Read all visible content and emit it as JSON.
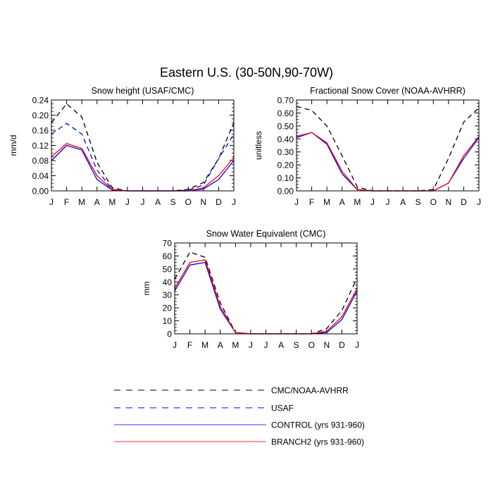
{
  "figure_title": "Eastern U.S. (30-50N,90-70W)",
  "months": [
    "J",
    "F",
    "M",
    "A",
    "M",
    "J",
    "J",
    "A",
    "S",
    "O",
    "N",
    "D",
    "J"
  ],
  "legend": [
    {
      "label": "CMC/NOAA-AVHRR",
      "color": "#000000",
      "dashed": true
    },
    {
      "label": "USAF",
      "color": "#0000ff",
      "dashed": true
    },
    {
      "label": "CONTROL (yrs 931-960)",
      "color": "#0000ff",
      "dashed": false
    },
    {
      "label": "BRANCH2 (yrs 931-960)",
      "color": "#ff0000",
      "dashed": false
    }
  ],
  "chart_data": [
    {
      "type": "line",
      "title": "Snow height (USAF/CMC)",
      "ylabel": "mm/d",
      "xlabel": "",
      "ylim": [
        0,
        0.24
      ],
      "yticks": [
        "0.00",
        "0.04",
        "0.08",
        "0.12",
        "0.16",
        "0.20",
        "0.24"
      ],
      "x": [
        "J",
        "F",
        "M",
        "A",
        "M",
        "J",
        "J",
        "A",
        "S",
        "O",
        "N",
        "D",
        "J"
      ],
      "series": [
        {
          "name": "CMC/NOAA-AVHRR",
          "color": "#000000",
          "dashed": true,
          "values": [
            0.18,
            0.23,
            0.195,
            0.075,
            0.008,
            0.0,
            0.0,
            0.0,
            0.0,
            0.004,
            0.022,
            0.085,
            0.18
          ]
        },
        {
          "name": "USAF",
          "color": "#0000ff",
          "dashed": true,
          "values": [
            0.15,
            0.178,
            0.15,
            0.055,
            0.004,
            0.0,
            0.0,
            0.0,
            0.0,
            0.002,
            0.015,
            0.085,
            0.15
          ]
        },
        {
          "name": "CONTROL (yrs 931-960)",
          "color": "#0000ff",
          "dashed": false,
          "values": [
            0.08,
            0.12,
            0.108,
            0.03,
            0.002,
            0.0,
            0.0,
            0.0,
            0.0,
            0.0,
            0.005,
            0.03,
            0.08
          ]
        },
        {
          "name": "BRANCH2 (yrs 931-960)",
          "color": "#ff0000",
          "dashed": false,
          "values": [
            0.09,
            0.125,
            0.112,
            0.04,
            0.003,
            0.0,
            0.0,
            0.0,
            0.0,
            0.0,
            0.008,
            0.04,
            0.088
          ]
        }
      ]
    },
    {
      "type": "line",
      "title": "Fractional Snow Cover (NOAA-AVHRR)",
      "ylabel": "unitless",
      "xlabel": "",
      "ylim": [
        0,
        0.7
      ],
      "yticks": [
        "0.00",
        "0.10",
        "0.20",
        "0.30",
        "0.40",
        "0.50",
        "0.60",
        "0.70"
      ],
      "x": [
        "J",
        "F",
        "M",
        "A",
        "M",
        "J",
        "J",
        "A",
        "S",
        "O",
        "N",
        "D",
        "J"
      ],
      "series": [
        {
          "name": "CMC/NOAA-AVHRR",
          "color": "#000000",
          "dashed": true,
          "values": [
            0.65,
            0.62,
            0.5,
            0.27,
            0.03,
            0.0,
            0.0,
            0.0,
            0.0,
            0.01,
            0.25,
            0.53,
            0.64
          ]
        },
        {
          "name": "CONTROL (yrs 931-960)",
          "color": "#0000ff",
          "dashed": false,
          "values": [
            0.41,
            0.45,
            0.36,
            0.13,
            0.01,
            0.0,
            0.0,
            0.0,
            0.0,
            0.0,
            0.06,
            0.25,
            0.41
          ]
        },
        {
          "name": "BRANCH2 (yrs 931-960)",
          "color": "#ff0000",
          "dashed": false,
          "values": [
            0.42,
            0.45,
            0.37,
            0.15,
            0.01,
            0.0,
            0.0,
            0.0,
            0.0,
            0.0,
            0.06,
            0.27,
            0.42
          ]
        }
      ]
    },
    {
      "type": "line",
      "title": "Snow Water Equivalent (CMC)",
      "ylabel": "mm",
      "xlabel": "",
      "ylim": [
        0,
        70
      ],
      "yticks": [
        "0",
        "10",
        "20",
        "30",
        "40",
        "50",
        "60",
        "70"
      ],
      "x": [
        "J",
        "F",
        "M",
        "A",
        "M",
        "J",
        "J",
        "A",
        "S",
        "O",
        "N",
        "D",
        "J"
      ],
      "series": [
        {
          "name": "CMC/NOAA-AVHRR",
          "color": "#000000",
          "dashed": true,
          "values": [
            42,
            63,
            59,
            24,
            1,
            0,
            0,
            0,
            0,
            0,
            4,
            18,
            43
          ]
        },
        {
          "name": "CONTROL (yrs 931-960)",
          "color": "#0000ff",
          "dashed": false,
          "values": [
            33,
            53,
            55,
            19,
            1,
            0,
            0,
            0,
            0,
            0,
            1,
            11,
            33
          ]
        },
        {
          "name": "BRANCH2 (yrs 931-960)",
          "color": "#ff0000",
          "dashed": false,
          "values": [
            35,
            55,
            57,
            21,
            1,
            0,
            0,
            0,
            0,
            0,
            2,
            13,
            35
          ]
        }
      ]
    }
  ]
}
